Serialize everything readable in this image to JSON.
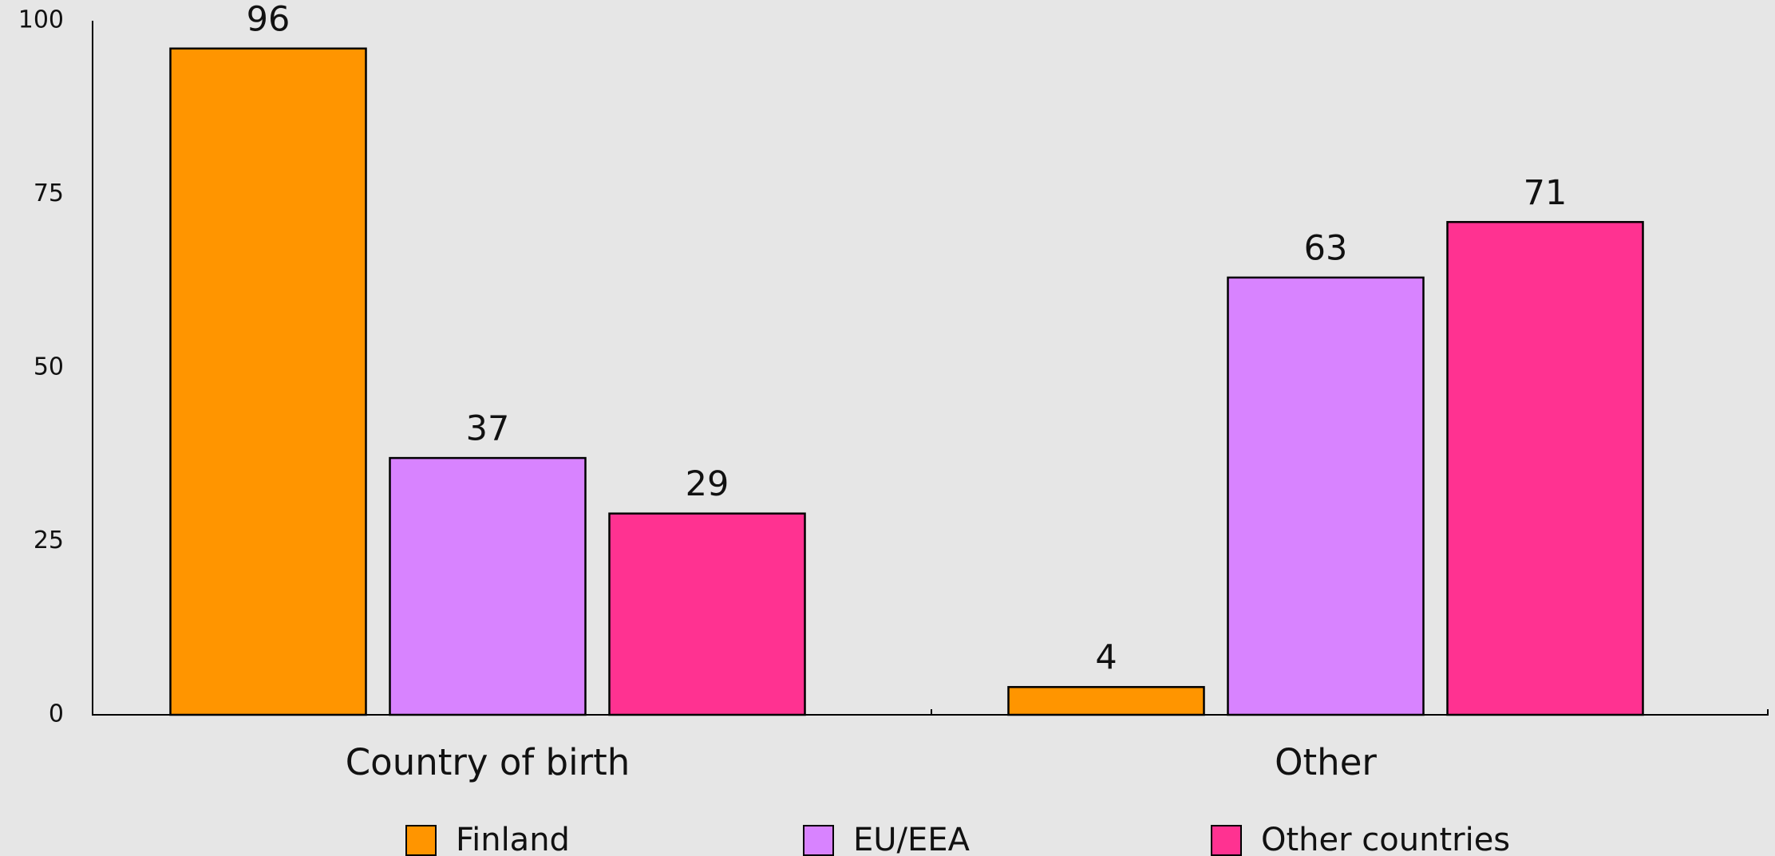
{
  "chart_data": {
    "type": "bar",
    "categories": [
      "Country of birth",
      "Other"
    ],
    "series": [
      {
        "name": "Finland",
        "color": "#ff9500",
        "values": [
          96,
          4
        ]
      },
      {
        "name": "EU/EEA",
        "color": "#d883ff",
        "values": [
          37,
          63
        ]
      },
      {
        "name": "Other countries",
        "color": "#ff3291",
        "values": [
          29,
          71
        ]
      }
    ],
    "ylim": [
      0,
      100
    ],
    "yticks": [
      0,
      25,
      50,
      75,
      100
    ],
    "grid": false,
    "legend": "bottom"
  }
}
